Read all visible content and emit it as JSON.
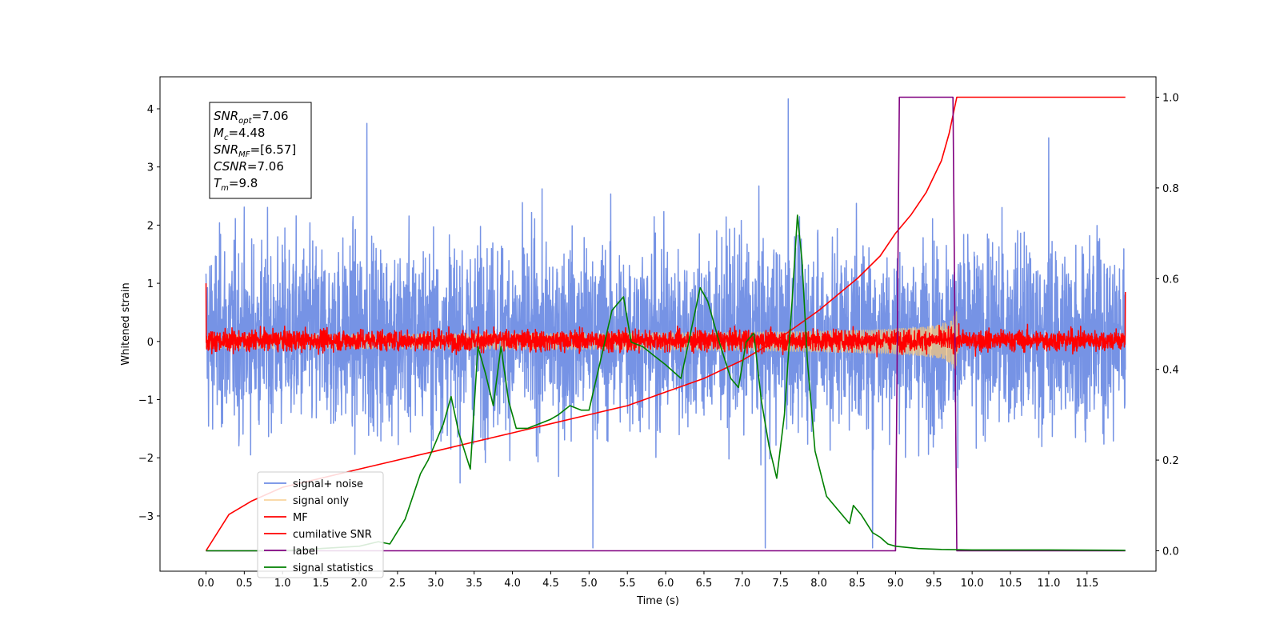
{
  "chart_data": {
    "type": "line",
    "xlabel": "Time (s)",
    "ylabel_left": "Whitened strain",
    "ylabel_right": "",
    "xlim": [
      -0.6,
      12.4
    ],
    "ylim_left": [
      -3.95,
      4.55
    ],
    "ylim_right": [
      -0.045,
      1.045
    ],
    "x_ticks": [
      0.0,
      0.5,
      1.0,
      1.5,
      2.0,
      2.5,
      3.0,
      3.5,
      4.0,
      4.5,
      5.0,
      5.5,
      6.0,
      6.5,
      7.0,
      7.5,
      8.0,
      8.5,
      9.0,
      9.5,
      10.0,
      10.5,
      11.0,
      11.5
    ],
    "x_tick_labels": [
      "0.0",
      "0.5",
      "1.0",
      "1.5",
      "2.0",
      "2.5",
      "3.0",
      "3.5",
      "4.0",
      "4.5",
      "5.0",
      "5.5",
      "6.0",
      "6.5",
      "7.0",
      "7.5",
      "8.0",
      "8.5",
      "9.0",
      "9.5",
      "10.0",
      "10.5",
      "11.0",
      "11.5"
    ],
    "y_left_ticks": [
      -3,
      -2,
      -1,
      0,
      1,
      2,
      3,
      4
    ],
    "y_left_tick_labels": [
      "−3",
      "−2",
      "−1",
      "0",
      "1",
      "2",
      "3",
      "4"
    ],
    "y_right_ticks": [
      0.0,
      0.2,
      0.4,
      0.6,
      0.8,
      1.0
    ],
    "y_right_tick_labels": [
      "0.0",
      "0.2",
      "0.4",
      "0.6",
      "0.8",
      "1.0"
    ],
    "annotation": [
      {
        "base": "SNR",
        "sub": "opt",
        "value": "=7.06"
      },
      {
        "base": "M",
        "sub": "c",
        "value": "=4.48"
      },
      {
        "base": "SNR",
        "sub": "MF",
        "value": "=[6.57]"
      },
      {
        "base": "CSNR",
        "sub": "",
        "value": "=7.06"
      },
      {
        "base": "T",
        "sub": "m",
        "value": "=9.8"
      }
    ],
    "legend_position": "lower-left",
    "grid": false,
    "series": [
      {
        "name": "signal+ noise",
        "axis": "left",
        "color": "#6f8de4",
        "kind": "noise",
        "mean": 0.1,
        "std": 0.8,
        "x_range": [
          0.0,
          12.0
        ],
        "peak_max": 4.17,
        "peak_min": -3.55
      },
      {
        "name": "signal only",
        "axis": "left",
        "color": "#f5c77e",
        "kind": "chirp",
        "x_range": [
          0.0,
          12.0
        ],
        "merger_time": 9.8,
        "peak_amplitude": 0.65
      },
      {
        "name": "MF",
        "axis": "left",
        "color": "#ff0000",
        "kind": "noise",
        "mean": 0.02,
        "std": 0.09,
        "x_range": [
          0.0,
          12.0
        ],
        "start_value": 1.0,
        "end_value": 0.85
      },
      {
        "name": "cumilative SNR",
        "axis": "right",
        "color": "#ff0000",
        "kind": "line",
        "x": [
          0.0,
          0.3,
          0.6,
          1.0,
          1.5,
          2.0,
          2.5,
          3.0,
          3.5,
          4.0,
          4.5,
          5.0,
          5.5,
          6.0,
          6.5,
          7.0,
          7.5,
          8.0,
          8.5,
          8.8,
          9.0,
          9.2,
          9.4,
          9.6,
          9.7,
          9.8,
          10.0,
          11.0,
          12.0
        ],
        "y": [
          0.0,
          0.08,
          0.11,
          0.14,
          0.16,
          0.18,
          0.2,
          0.22,
          0.24,
          0.26,
          0.28,
          0.3,
          0.32,
          0.35,
          0.38,
          0.42,
          0.47,
          0.53,
          0.6,
          0.65,
          0.7,
          0.74,
          0.79,
          0.86,
          0.92,
          1.0,
          1.0,
          1.0,
          1.0
        ]
      },
      {
        "name": "label",
        "axis": "right",
        "color": "#800080",
        "kind": "line",
        "x": [
          0.0,
          9.0,
          9.05,
          9.75,
          9.8,
          12.0
        ],
        "y": [
          0.0,
          0.0,
          1.0,
          1.0,
          0.0,
          0.0
        ]
      },
      {
        "name": "signal statistics",
        "axis": "right",
        "color": "#008000",
        "kind": "line",
        "x": [
          0.0,
          1.0,
          2.0,
          2.25,
          2.4,
          2.6,
          2.8,
          2.9,
          3.0,
          3.1,
          3.2,
          3.3,
          3.45,
          3.55,
          3.65,
          3.75,
          3.85,
          3.95,
          4.05,
          4.2,
          4.35,
          4.5,
          4.6,
          4.75,
          4.9,
          5.0,
          5.15,
          5.3,
          5.45,
          5.55,
          5.7,
          5.85,
          6.0,
          6.2,
          6.35,
          6.45,
          6.55,
          6.7,
          6.85,
          6.95,
          7.05,
          7.15,
          7.25,
          7.35,
          7.45,
          7.55,
          7.65,
          7.72,
          7.78,
          7.85,
          7.95,
          8.1,
          8.25,
          8.4,
          8.45,
          8.55,
          8.7,
          8.8,
          8.9,
          9.0,
          9.3,
          9.6,
          10.0,
          11.0,
          12.0
        ],
        "y": [
          0.0,
          0.0,
          0.01,
          0.02,
          0.015,
          0.07,
          0.17,
          0.2,
          0.24,
          0.28,
          0.34,
          0.26,
          0.18,
          0.45,
          0.39,
          0.32,
          0.45,
          0.33,
          0.27,
          0.27,
          0.28,
          0.29,
          0.3,
          0.32,
          0.31,
          0.31,
          0.42,
          0.53,
          0.56,
          0.46,
          0.45,
          0.43,
          0.41,
          0.38,
          0.5,
          0.58,
          0.55,
          0.46,
          0.38,
          0.36,
          0.46,
          0.48,
          0.33,
          0.23,
          0.16,
          0.3,
          0.55,
          0.74,
          0.64,
          0.42,
          0.22,
          0.12,
          0.09,
          0.06,
          0.1,
          0.08,
          0.04,
          0.03,
          0.015,
          0.01,
          0.005,
          0.003,
          0.002,
          0.002,
          0.001
        ]
      }
    ]
  }
}
